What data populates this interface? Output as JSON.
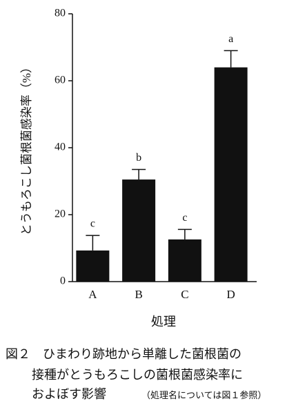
{
  "chart_data": {
    "type": "bar",
    "y_label": "とうもろこし菌根菌感染率（%）",
    "x_label": "処理",
    "categories": [
      "A",
      "B",
      "C",
      "D"
    ],
    "values": [
      9.3,
      30.5,
      12.6,
      64
    ],
    "errors": [
      4.5,
      3,
      3,
      5
    ],
    "annotations": [
      "c",
      "b",
      "c",
      "a"
    ],
    "color": "#111111",
    "ylim": [
      0,
      80
    ],
    "yticks": [
      0,
      20,
      40,
      60,
      80
    ],
    "grid": false,
    "caption": [
      "図２　ひまわり跡地から単離した菌根菌の",
      "接種がとうもろこしの菌根菌感染率に",
      "およぼす影響",
      "（処理名については図１参照）"
    ]
  }
}
